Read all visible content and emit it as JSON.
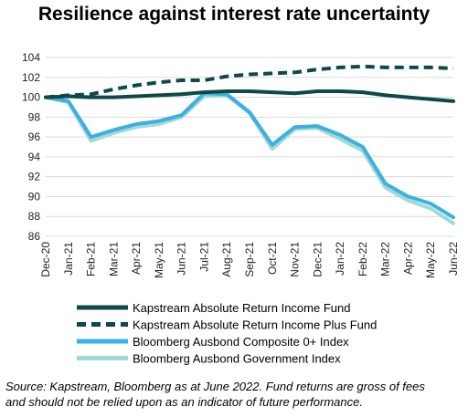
{
  "chart_data": {
    "type": "line",
    "title": "Resilience against interest rate uncertainty",
    "categories": [
      "Dec-20",
      "Jan-21",
      "Feb-21",
      "Mar-21",
      "Apr-21",
      "May-21",
      "Jun-21",
      "Jul-21",
      "Aug-21",
      "Sep-21",
      "Oct-21",
      "Nov-21",
      "Dec-21",
      "Jan-22",
      "Feb-22",
      "Mar-22",
      "Apr-22",
      "May-22",
      "Jun-22"
    ],
    "ylim": [
      86,
      104
    ],
    "yticks": [
      "86",
      "88",
      "90",
      "92",
      "94",
      "96",
      "98",
      "100",
      "102",
      "104"
    ],
    "grid": true,
    "legend_position": "bottom",
    "series": [
      {
        "name": "Kapstream Absolute Return Income Fund",
        "color": "#0d4a47",
        "style": "solid",
        "values": [
          100.0,
          100.1,
          100.0,
          100.0,
          100.1,
          100.2,
          100.3,
          100.5,
          100.6,
          100.6,
          100.5,
          100.4,
          100.6,
          100.6,
          100.5,
          100.2,
          100.0,
          99.8,
          99.6
        ]
      },
      {
        "name": "Kapstream Absolute Return Income Plus Fund",
        "color": "#0d4a47",
        "style": "dashed",
        "values": [
          100.0,
          100.2,
          100.3,
          100.8,
          101.2,
          101.5,
          101.7,
          101.7,
          102.1,
          102.3,
          102.4,
          102.5,
          102.8,
          103.0,
          103.1,
          103.0,
          103.0,
          103.0,
          102.9
        ]
      },
      {
        "name": "Bloomberg Ausbond Composite 0+ Index",
        "color": "#3bb0e2",
        "style": "solid",
        "values": [
          100.0,
          99.6,
          96.0,
          96.7,
          97.3,
          97.6,
          98.2,
          100.4,
          100.3,
          98.5,
          95.2,
          97.0,
          97.1,
          96.2,
          95.0,
          91.3,
          90.0,
          89.3,
          87.9
        ]
      },
      {
        "name": "Bloomberg Ausbond Government Index",
        "color": "#9fdad5",
        "style": "solid",
        "values": [
          100.0,
          99.5,
          95.6,
          96.4,
          97.0,
          97.3,
          98.0,
          100.1,
          100.2,
          98.4,
          94.8,
          96.8,
          96.9,
          95.8,
          94.6,
          90.9,
          89.6,
          88.8,
          87.3
        ]
      }
    ]
  },
  "footer": {
    "source_line1": "Source: Kapstream, Bloomberg as at June 2022. Fund returns are gross of fees",
    "source_line2": "and should not be relied upon as an indicator of future performance."
  }
}
